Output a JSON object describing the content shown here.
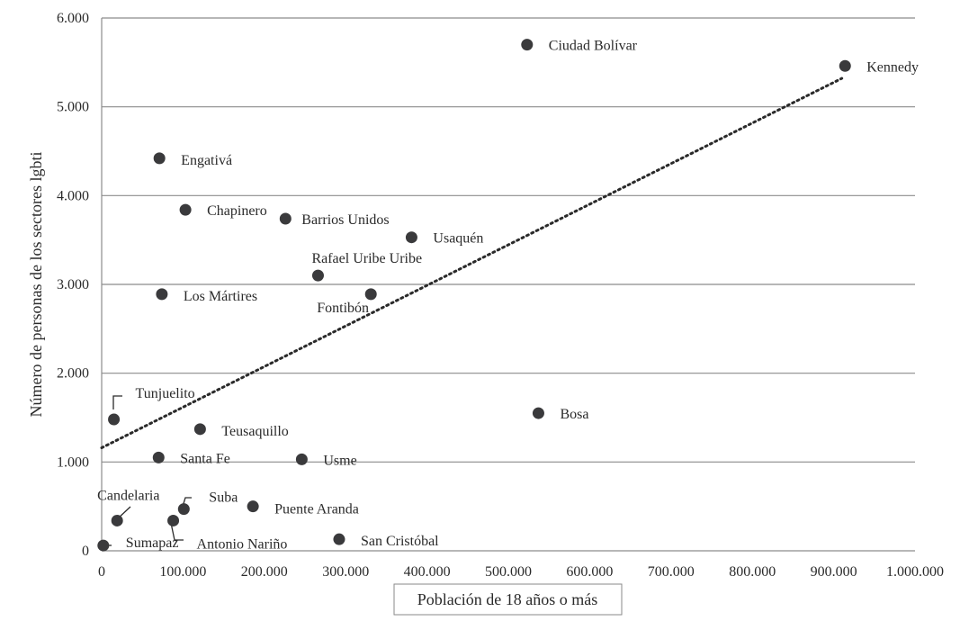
{
  "chart_data": {
    "type": "scatter",
    "xlabel": "Población de 18 años o más",
    "ylabel": "Número de personas de los sectores lgbti",
    "xlim": [
      0,
      1000000
    ],
    "ylim": [
      0,
      6000
    ],
    "grid": "horizontal",
    "trendline": {
      "type": "linear",
      "style": "dotted",
      "from": [
        0,
        1160
      ],
      "to": [
        910000,
        5320
      ]
    },
    "x_ticks": [
      "0",
      "100.000",
      "200.000",
      "300.000",
      "400.000",
      "500.000",
      "600.000",
      "700.000",
      "800.000",
      "900.000",
      "1.000.000"
    ],
    "y_ticks": [
      "0",
      "1.000",
      "2.000",
      "3.000",
      "4.000",
      "5.000",
      "6.000"
    ],
    "points": [
      {
        "label": "Ciudad Bolívar",
        "x": 523000,
        "y": 5700
      },
      {
        "label": "Kennedy",
        "x": 914000,
        "y": 5460
      },
      {
        "label": "Engativá",
        "x": 71000,
        "y": 4420
      },
      {
        "label": "Chapinero",
        "x": 103000,
        "y": 3840
      },
      {
        "label": "Barrios Unidos",
        "x": 226000,
        "y": 3740
      },
      {
        "label": "Usaquén",
        "x": 381000,
        "y": 3530
      },
      {
        "label": "Rafael Uribe Uribe",
        "x": 266000,
        "y": 3100
      },
      {
        "label": "Los Mártires",
        "x": 74000,
        "y": 2890
      },
      {
        "label": "Fontibón",
        "x": 331000,
        "y": 2890
      },
      {
        "label": "Tunjuelito",
        "x": 15000,
        "y": 1480
      },
      {
        "label": "Teusaquillo",
        "x": 121000,
        "y": 1370
      },
      {
        "label": "Bosa",
        "x": 537000,
        "y": 1550
      },
      {
        "label": "Santa Fe",
        "x": 70000,
        "y": 1050
      },
      {
        "label": "Usme",
        "x": 246000,
        "y": 1030
      },
      {
        "label": "Candelaria",
        "x": 19000,
        "y": 340
      },
      {
        "label": "Suba",
        "x": 101000,
        "y": 470
      },
      {
        "label": "Puente Aranda",
        "x": 186000,
        "y": 500
      },
      {
        "label": "Antonio Nariño",
        "x": 88000,
        "y": 340
      },
      {
        "label": "Sumapaz",
        "x": 2000,
        "y": 60
      },
      {
        "label": "San Cristóbal",
        "x": 292000,
        "y": 130
      }
    ]
  }
}
